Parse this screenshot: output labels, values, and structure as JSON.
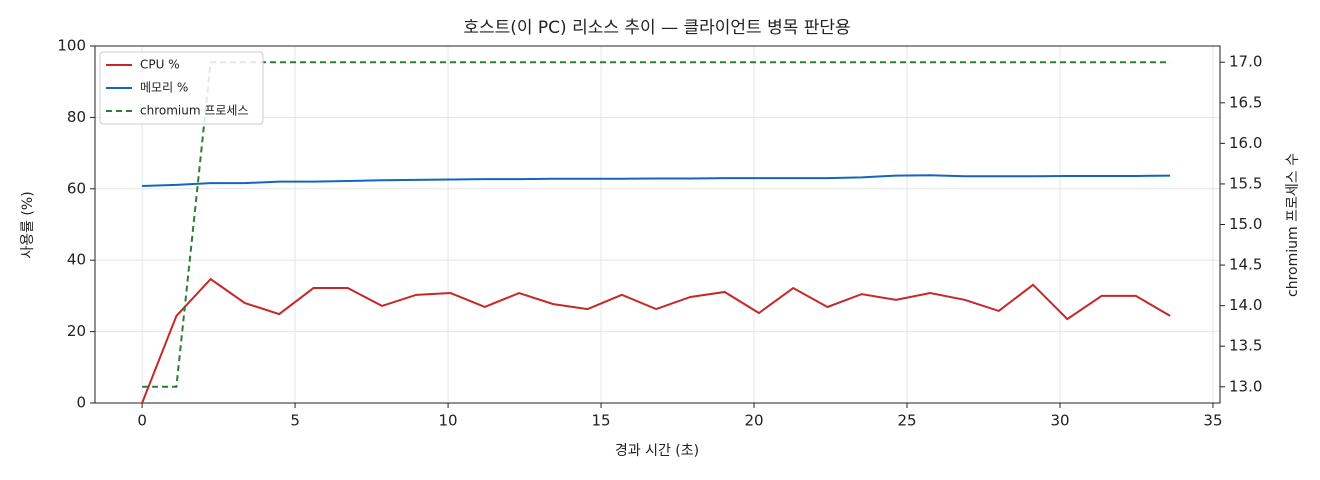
{
  "chart_data": {
    "type": "line",
    "title": "호스트(이 PC) 리소스 추이 — 클라이언트 병목 판단용",
    "xlabel": "경과 시간 (초)",
    "ylabel": "사용률 (%)",
    "y2label": "chromium 프로세스 수",
    "x": [
      0,
      1.12,
      2.24,
      3.36,
      4.48,
      5.6,
      6.72,
      7.84,
      8.96,
      10.08,
      11.2,
      12.32,
      13.44,
      14.56,
      15.68,
      16.8,
      17.92,
      19.04,
      20.16,
      21.28,
      22.4,
      23.52,
      24.64,
      25.76,
      26.88,
      28.0,
      29.12,
      30.24,
      31.36,
      32.48,
      33.6
    ],
    "series": [
      {
        "name": "CPU %",
        "color": "#c62828",
        "linestyle": "solid",
        "values": [
          0,
          24.4,
          34.7,
          28,
          24.9,
          32.2,
          32.2,
          27.2,
          30.3,
          30.8,
          26.9,
          30.8,
          27.7,
          26.3,
          30.3,
          26.3,
          29.7,
          31.1,
          25.2,
          32.2,
          26.9,
          30.5,
          28.9,
          30.8,
          28.9,
          25.8,
          33.1,
          23.5,
          30,
          30,
          24.4
        ]
      },
      {
        "name": "메모리 %",
        "color": "#1565c0",
        "linestyle": "solid",
        "values": [
          60.8,
          61.1,
          61.6,
          61.6,
          62,
          62,
          62.2,
          62.4,
          62.5,
          62.6,
          62.7,
          62.7,
          62.8,
          62.8,
          62.8,
          62.9,
          62.9,
          63,
          63,
          63,
          63,
          63.2,
          63.7,
          63.8,
          63.5,
          63.5,
          63.5,
          63.6,
          63.6,
          63.6,
          63.7
        ]
      },
      {
        "name": "chromium 프로세스",
        "color": "#2e7d32",
        "linestyle": "dashed",
        "axis": "y2",
        "values": [
          13,
          13,
          17,
          17,
          17,
          17,
          17,
          17,
          17,
          17,
          17,
          17,
          17,
          17,
          17,
          17,
          17,
          17,
          17,
          17,
          17,
          17,
          17,
          17,
          17,
          17,
          17,
          17,
          17,
          17,
          17
        ]
      }
    ],
    "xlim": [
      -1.54,
      35.23
    ],
    "xticks": [
      0,
      5,
      10,
      15,
      20,
      25,
      30,
      35
    ],
    "ylim": [
      0,
      100
    ],
    "yticks": [
      0,
      20,
      40,
      60,
      80,
      100
    ],
    "y2lim": [
      12.8,
      17.2
    ],
    "y2ticks": [
      {
        "value": 13,
        "label": "13.0"
      },
      {
        "value": 13.5,
        "label": "13.5"
      },
      {
        "value": 14,
        "label": "14.0"
      },
      {
        "value": 14.5,
        "label": "14.5"
      },
      {
        "value": 15,
        "label": "15.0"
      },
      {
        "value": 15.5,
        "label": "15.5"
      },
      {
        "value": 16,
        "label": "16.0"
      },
      {
        "value": 16.5,
        "label": "16.5"
      },
      {
        "value": 17,
        "label": "17.0"
      }
    ],
    "grid": true,
    "legend": "upper left"
  }
}
